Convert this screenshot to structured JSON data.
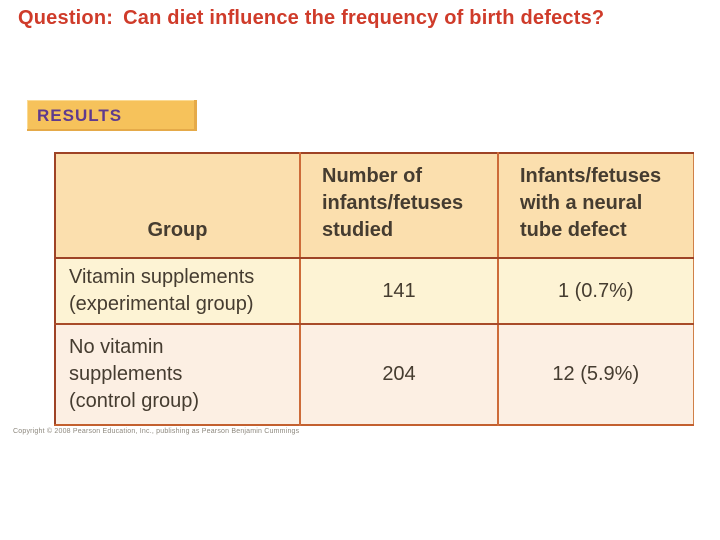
{
  "question": {
    "label": "Question:",
    "text": "Can diet influence the frequency of birth defects?"
  },
  "results_badge": "RESULTS",
  "table": {
    "headers": {
      "group": "Group",
      "studied": "Number of\ninfants/fetuses\nstudied",
      "defect": "Infants/fetuses\nwith a neural\ntube defect"
    },
    "rows": [
      {
        "group": "Vitamin supplements\n(experimental group)",
        "studied": "141",
        "defect": "1 (0.7%)"
      },
      {
        "group": "No vitamin\nsupplements\n(control group)",
        "studied": "204",
        "defect": "12 (5.9%)"
      }
    ]
  },
  "copyright": "Copyright © 2008 Pearson Education, Inc., publishing as Pearson Benjamin Cummings",
  "colors": {
    "question_red": "#cf3b2a",
    "badge_bg": "#f6c25b",
    "badge_text": "#5f3a8e",
    "table_header_bg": "#fbdfae",
    "row_experimental_bg": "#fdf3d4",
    "row_control_bg": "#fcefe3",
    "table_border_dark": "#9e4326",
    "table_border_light": "#cd6b39",
    "body_text": "#453c30"
  },
  "chart_data": {
    "type": "table",
    "title": "RESULTS",
    "columns": [
      "Group",
      "Number of infants/fetuses studied",
      "Infants/fetuses with a neural tube defect"
    ],
    "rows": [
      [
        "Vitamin supplements (experimental group)",
        141,
        "1 (0.7%)"
      ],
      [
        "No vitamin supplements (control group)",
        204,
        "12 (5.9%)"
      ]
    ]
  }
}
